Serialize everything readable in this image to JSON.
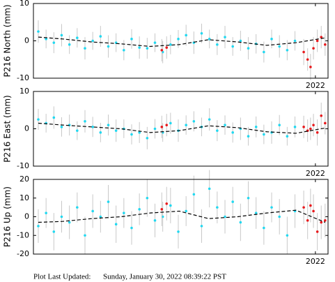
{
  "chart_data": [
    {
      "type": "scatter",
      "ylabel": "P216 North (mm)",
      "xlim": [
        2019.1,
        2022.13
      ],
      "xticks": [
        2022
      ],
      "ylim": [
        -10,
        10
      ],
      "yticks": [
        -10,
        0,
        10
      ],
      "series": [
        {
          "color": "#22d8f0",
          "x": [
            2019.15,
            2019.23,
            2019.31,
            2019.39,
            2019.47,
            2019.55,
            2019.63,
            2019.71,
            2019.79,
            2019.87,
            2019.95,
            2020.03,
            2020.11,
            2020.19,
            2020.27,
            2020.35,
            2020.43,
            2020.51,
            2020.59,
            2020.67,
            2020.75,
            2020.83,
            2020.91,
            2020.99,
            2021.07,
            2021.15,
            2021.23,
            2021.31,
            2021.39,
            2021.47,
            2021.55,
            2021.63,
            2021.71,
            2021.79
          ],
          "values": [
            2.5,
            0.5,
            -0.5,
            1.5,
            -1,
            0.8,
            -2,
            0,
            1.2,
            -1.5,
            -0.5,
            -2.5,
            0.5,
            -1.8,
            -2,
            -0.5,
            -3,
            -1,
            0.5,
            1.5,
            -0.5,
            2,
            0.5,
            -1,
            1,
            -1.5,
            0,
            -2,
            -0.8,
            -3,
            0.5,
            -1.5,
            -2.5,
            0
          ],
          "errors": [
            3,
            2.5,
            2.8,
            3,
            2.5,
            2.6,
            3,
            2.4,
            2.8,
            3,
            2.5,
            2.7,
            2.6,
            3,
            2.8,
            2.5,
            3,
            2.6,
            2.4,
            2.8,
            3,
            2.6,
            2.5,
            2.8,
            3,
            2.5,
            2.7,
            3,
            2.6,
            2.8,
            2.5,
            3,
            2.7,
            2.6
          ]
        },
        {
          "color": "#e8191c",
          "x": [
            2020.42,
            2020.47,
            2021.88,
            2021.92,
            2021.95,
            2021.98,
            2022.02,
            2022.06,
            2022.1
          ],
          "values": [
            -2.5,
            -1.8,
            -3,
            -5,
            -7,
            -2,
            0,
            1,
            -1
          ],
          "errors": [
            3,
            3,
            3.5,
            3,
            3.5,
            3,
            3,
            3,
            3
          ]
        },
        {
          "type": "line",
          "dash": true,
          "color": "#000000",
          "x": [
            2019.15,
            2019.4,
            2019.7,
            2020.0,
            2020.3,
            2020.6,
            2020.9,
            2021.2,
            2021.5,
            2021.8,
            2022.1
          ],
          "values": [
            1,
            0.5,
            -0.3,
            -0.8,
            -1.5,
            -1,
            0.3,
            -0.3,
            -1.2,
            -0.5,
            0.8
          ]
        }
      ]
    },
    {
      "type": "scatter",
      "ylabel": "P216 East (mm)",
      "xlim": [
        2019.1,
        2022.13
      ],
      "xticks": [
        2022
      ],
      "ylim": [
        -10,
        10
      ],
      "yticks": [
        -10,
        0,
        10
      ],
      "series": [
        {
          "color": "#22d8f0",
          "x": [
            2019.15,
            2019.23,
            2019.31,
            2019.39,
            2019.47,
            2019.55,
            2019.63,
            2019.71,
            2019.79,
            2019.87,
            2019.95,
            2020.03,
            2020.11,
            2020.19,
            2020.27,
            2020.35,
            2020.43,
            2020.51,
            2020.59,
            2020.67,
            2020.75,
            2020.83,
            2020.91,
            2020.99,
            2021.07,
            2021.15,
            2021.23,
            2021.31,
            2021.39,
            2021.47,
            2021.55,
            2021.63,
            2021.71,
            2021.79
          ],
          "values": [
            2.5,
            1.5,
            3,
            0.5,
            1,
            -0.5,
            2,
            0.5,
            -1,
            1,
            -0.5,
            0,
            -1.5,
            -1,
            -2.5,
            0,
            -1,
            1.5,
            -0.5,
            1,
            2,
            0.5,
            2.5,
            -0.5,
            1,
            -1,
            0,
            -2,
            0.5,
            -1.5,
            -1,
            1,
            -2,
            0.5
          ],
          "errors": [
            2.8,
            2.5,
            3,
            2.6,
            2.8,
            2.5,
            3,
            2.7,
            2.6,
            2.8,
            3,
            2.5,
            2.7,
            2.8,
            3,
            2.6,
            2.5,
            2.8,
            3,
            2.6,
            2.7,
            2.5,
            3,
            2.8,
            2.6,
            2.7,
            3,
            2.5,
            2.8,
            2.6,
            3,
            2.7,
            2.5,
            2.8
          ]
        },
        {
          "color": "#e8191c",
          "x": [
            2020.42,
            2020.47,
            2021.88,
            2021.92,
            2021.95,
            2021.98,
            2022.02,
            2022.06,
            2022.1
          ],
          "values": [
            0.5,
            1,
            0.5,
            -0.5,
            0,
            1,
            -1,
            3.5,
            1.5
          ],
          "errors": [
            3,
            3,
            3,
            3,
            3,
            3,
            3.5,
            3.5,
            3
          ]
        },
        {
          "type": "line",
          "dash": true,
          "color": "#000000",
          "x": [
            2019.15,
            2019.4,
            2019.7,
            2020.0,
            2020.3,
            2020.6,
            2020.9,
            2021.2,
            2021.5,
            2021.8,
            2022.1
          ],
          "values": [
            1.5,
            1,
            0.5,
            0,
            -1,
            -0.5,
            0.8,
            0.3,
            -0.8,
            -1.2,
            0.2
          ]
        }
      ]
    },
    {
      "type": "scatter",
      "ylabel": "P216 Up (mm)",
      "xlim": [
        2019.1,
        2022.13
      ],
      "xticks": [
        2022
      ],
      "ylim": [
        -20,
        20
      ],
      "yticks": [
        -20,
        -10,
        0,
        10,
        20
      ],
      "series": [
        {
          "color": "#22d8f0",
          "x": [
            2019.15,
            2019.23,
            2019.31,
            2019.39,
            2019.47,
            2019.55,
            2019.63,
            2019.71,
            2019.79,
            2019.87,
            2019.95,
            2020.03,
            2020.11,
            2020.19,
            2020.27,
            2020.35,
            2020.43,
            2020.51,
            2020.59,
            2020.67,
            2020.75,
            2020.83,
            2020.91,
            2020.99,
            2021.07,
            2021.15,
            2021.23,
            2021.31,
            2021.39,
            2021.47,
            2021.55,
            2021.63,
            2021.71,
            2021.79
          ],
          "values": [
            -5,
            2,
            -8,
            0,
            -3,
            5,
            -10,
            3,
            0,
            8,
            -4,
            2,
            -6,
            4,
            10,
            -2,
            0,
            6,
            -8,
            3,
            12,
            -5,
            15,
            5,
            0,
            8,
            -3,
            10,
            2,
            -6,
            5,
            0,
            -10,
            3
          ],
          "errors": [
            9,
            8,
            10,
            8.5,
            9,
            8,
            10,
            9,
            8.5,
            9,
            10,
            8,
            9,
            8.5,
            10,
            9,
            8,
            9.5,
            9,
            8,
            10,
            9,
            10,
            8.5,
            9,
            8,
            10,
            9,
            8.5,
            9,
            8,
            9.5,
            10,
            9
          ]
        },
        {
          "color": "#e8191c",
          "x": [
            2020.42,
            2020.47,
            2021.88,
            2021.92,
            2021.95,
            2021.98,
            2022.02,
            2022.06,
            2022.1
          ],
          "values": [
            4,
            7,
            5,
            -2,
            6,
            3,
            -8,
            -3,
            -2
          ],
          "errors": [
            9,
            9,
            9,
            10,
            9,
            9,
            10,
            9,
            9
          ]
        },
        {
          "type": "line",
          "dash": true,
          "color": "#000000",
          "x": [
            2019.15,
            2019.4,
            2019.7,
            2020.0,
            2020.3,
            2020.6,
            2020.9,
            2021.2,
            2021.5,
            2021.8,
            2022.1
          ],
          "values": [
            -3,
            -2.5,
            -1,
            0,
            2,
            3,
            -1,
            0,
            2,
            3.5,
            -3
          ]
        }
      ]
    }
  ],
  "footer": {
    "label": "Plot Last Updated:",
    "date": "Sunday, January 30, 2022 08:39:22 PST"
  }
}
